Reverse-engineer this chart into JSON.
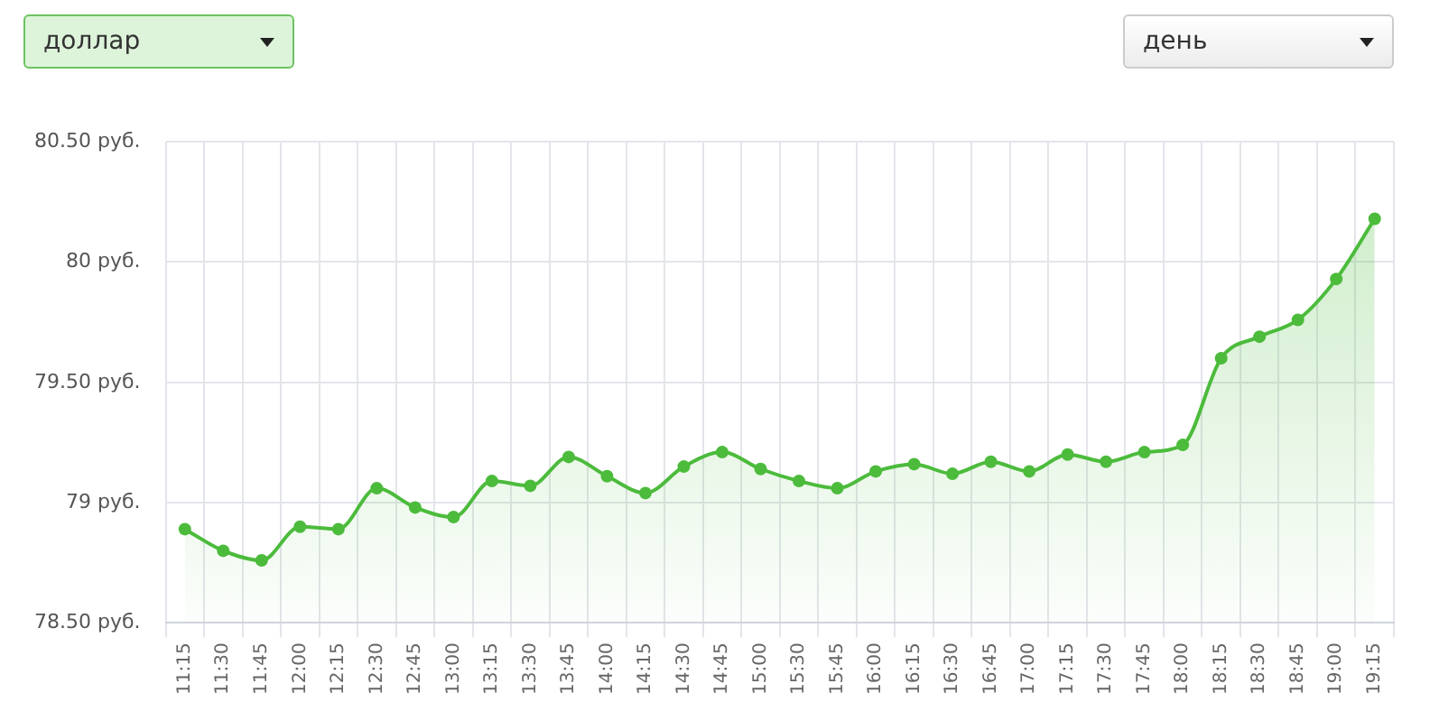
{
  "chart_data": {
    "type": "area",
    "annotations": [
      "доллар",
      "день"
    ],
    "categories": [
      "11:15",
      "11:30",
      "11:45",
      "12:00",
      "12:15",
      "12:30",
      "12:45",
      "13:00",
      "13:15",
      "13:30",
      "13:45",
      "14:00",
      "14:15",
      "14:30",
      "14:45",
      "15:00",
      "15:30",
      "15:45",
      "16:00",
      "16:15",
      "16:30",
      "16:45",
      "17:00",
      "17:15",
      "17:30",
      "17:45",
      "18:00",
      "18:15",
      "18:30",
      "18:45",
      "19:00",
      "19:15"
    ],
    "series": [
      {
        "color": "#4cbb3c",
        "values": [
          78.89,
          78.8,
          78.76,
          78.9,
          78.89,
          79.06,
          78.98,
          78.94,
          79.09,
          79.07,
          79.19,
          79.11,
          79.04,
          79.15,
          79.21,
          79.14,
          79.09,
          79.06,
          79.13,
          79.16,
          79.12,
          79.17,
          79.13,
          79.2,
          79.17,
          79.21,
          79.24,
          79.6,
          79.69,
          79.76,
          79.93,
          80.18
        ]
      }
    ],
    "ylim": [
      78.5,
      80.5
    ],
    "yticks": [
      {
        "value": 78.5,
        "label": "78.50 руб."
      },
      {
        "value": 79,
        "label": "79 руб."
      },
      {
        "value": 79.5,
        "label": "79.50 руб."
      },
      {
        "value": 80,
        "label": "80 руб."
      },
      {
        "value": 80.5,
        "label": "80.50 руб."
      }
    ],
    "grid": true,
    "legend": false,
    "marker": "circle",
    "line_style": "solid"
  }
}
